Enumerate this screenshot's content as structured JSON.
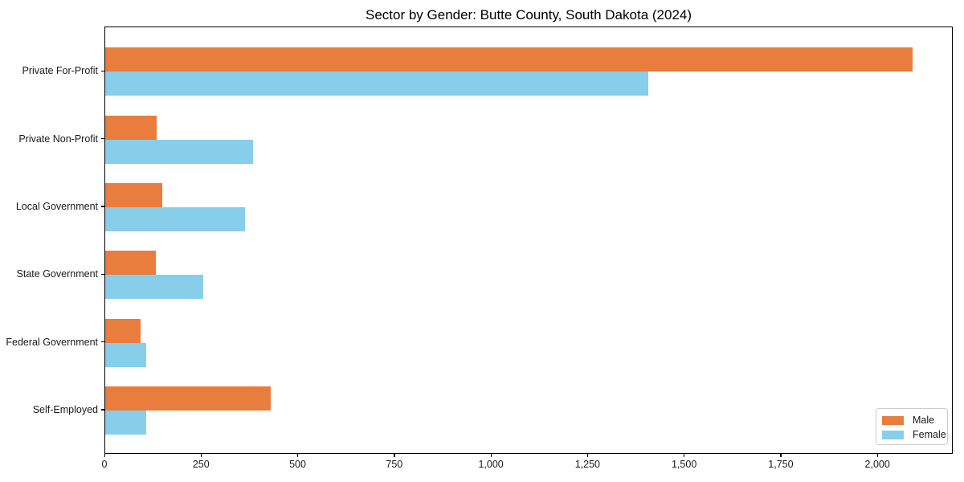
{
  "chart_data": {
    "type": "bar",
    "orientation": "horizontal",
    "title": "Sector by Gender: Butte County, South Dakota (2024)",
    "categories": [
      "Private For-Profit",
      "Private Non-Profit",
      "Local Government",
      "State Government",
      "Federal Government",
      "Self-Employed"
    ],
    "series": [
      {
        "name": "Male",
        "color": "#e87d3d",
        "values": [
          2090,
          132,
          148,
          130,
          92,
          429
        ]
      },
      {
        "name": "Female",
        "color": "#87ceeb",
        "values": [
          1405,
          382,
          361,
          254,
          105,
          106
        ]
      }
    ],
    "xlabel": "",
    "ylabel": "",
    "xlim": [
      0,
      2195
    ],
    "xticks": [
      0,
      250,
      500,
      750,
      1000,
      1250,
      1500,
      1750,
      2000
    ],
    "xtick_labels": [
      "0",
      "250",
      "500",
      "750",
      "1,000",
      "1,250",
      "1,500",
      "1,750",
      "2,000"
    ],
    "grid": false,
    "legend": {
      "position": "lower right",
      "entries": [
        "Male",
        "Female"
      ]
    }
  }
}
